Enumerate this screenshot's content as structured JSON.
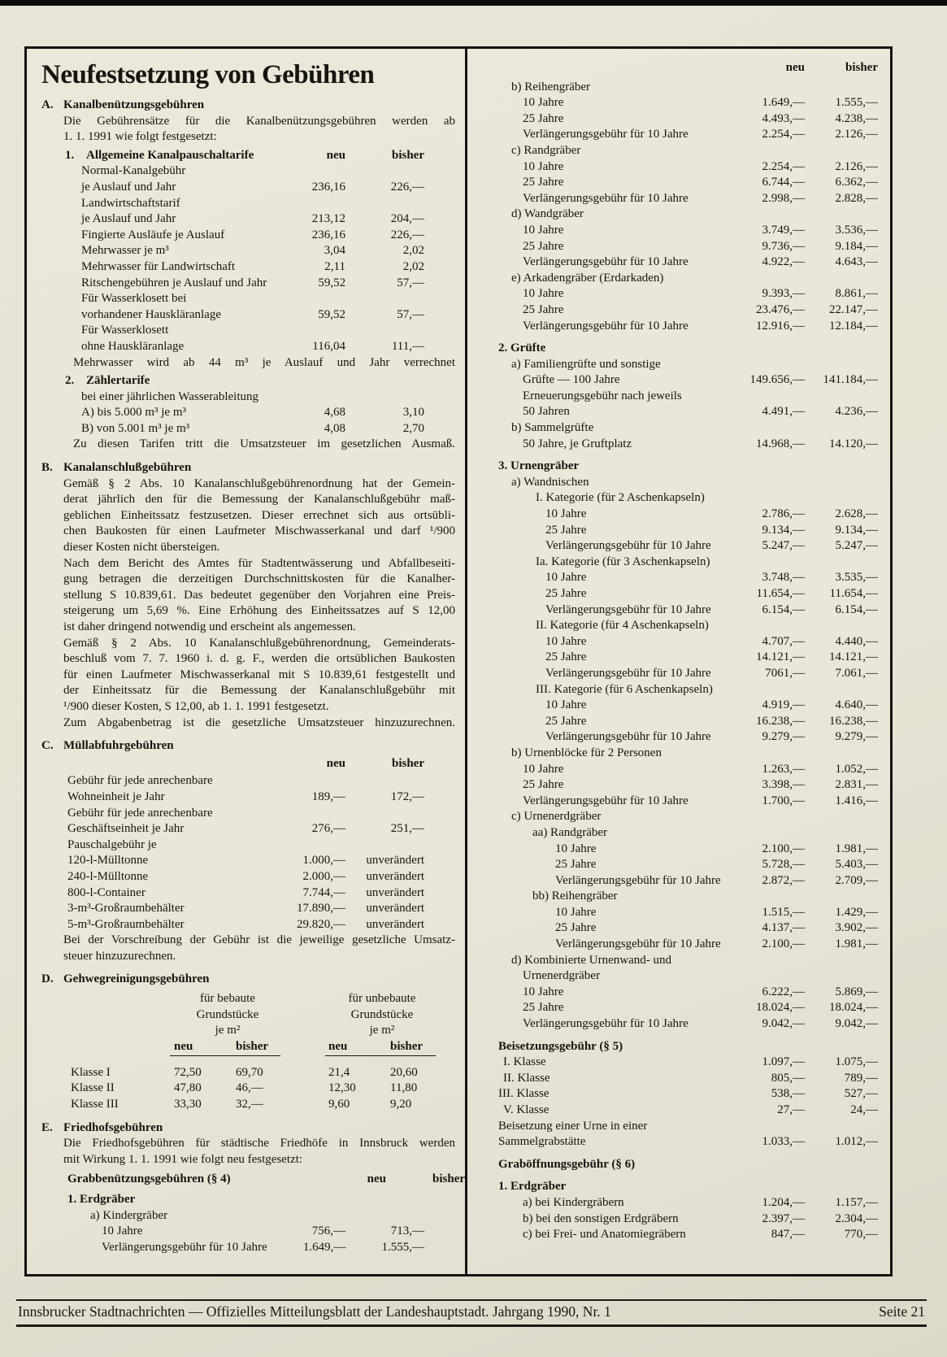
{
  "header": {
    "title": "Neufestsetzung von Gebühren"
  },
  "colors": {
    "paper": "#e9e5d6",
    "ink": "#17150f"
  },
  "footer": {
    "left": "Innsbrucker Stadtnachrichten — Offizielles Mitteilungsblatt der Landeshauptstadt. Jahrgang 1990, Nr. 1",
    "right": "Seite 21"
  },
  "columns": {
    "left": [
      {
        "t": "sec",
        "label": "A.",
        "text": "Kanalbenützungsgebühren"
      },
      {
        "t": "para",
        "lines": [
          "Die Gebührensätze für die Kanalbenützungsgebühren werden ab",
          "1. 1. 1991 wie folgt festgesetzt:"
        ]
      },
      {
        "t": "sub",
        "label": "1.",
        "text": "Allgemeine Kanalpauschaltarife",
        "neu": "neu",
        "bisher": "bisher"
      },
      {
        "t": "rows",
        "items": [
          {
            "ind": "a",
            "label": "Normal-Kanalgebühr"
          },
          {
            "ind": "a",
            "label": "je Auslauf und Jahr",
            "neu": "236,16",
            "bisher": "226,—"
          },
          {
            "ind": "a",
            "label": "Landwirtschaftstarif"
          },
          {
            "ind": "a",
            "label": "je Auslauf und Jahr",
            "neu": "213,12",
            "bisher": "204,—"
          },
          {
            "ind": "a",
            "label": "Fingierte Ausläufe je Auslauf",
            "neu": "236,16",
            "bisher": "226,—"
          },
          {
            "ind": "a",
            "label": "Mehrwasser je m³",
            "neu": "3,04",
            "bisher": "2,02"
          },
          {
            "ind": "a",
            "label": "Mehrwasser für Landwirtschaft",
            "neu": "2,11",
            "bisher": "2,02"
          },
          {
            "ind": "a",
            "label": "Ritschengebühren je Auslauf und Jahr",
            "neu": "59,52",
            "bisher": "57,—"
          },
          {
            "ind": "a",
            "label": "Für Wasserklosett bei"
          },
          {
            "ind": "a",
            "label": "vorhandener Hauskläranlage",
            "neu": "59,52",
            "bisher": "57,—"
          },
          {
            "ind": "a",
            "label": "Für Wasserklosett"
          },
          {
            "ind": "a",
            "label": "ohne Hauskläranlage",
            "neu": "116,04",
            "bisher": "111,—"
          }
        ]
      },
      {
        "t": "jline",
        "ind": "j1",
        "text": "Mehrwasser wird ab 44 m³ je Auslauf und Jahr verrechnet"
      },
      {
        "t": "sub",
        "label": "2.",
        "text": "Zählertarife"
      },
      {
        "t": "rows",
        "items": [
          {
            "ind": "a",
            "label": "bei einer jährlichen Wasserableitung"
          },
          {
            "ind": "a",
            "label": "A) bis 5.000 m³ je m³",
            "neu": "4,68",
            "bisher": "3,10"
          },
          {
            "ind": "a",
            "label": "B) von 5.001 m³ je m³",
            "neu": "4,08",
            "bisher": "2,70"
          }
        ]
      },
      {
        "t": "jline",
        "ind": "j1",
        "text": "Zu diesen Tarifen tritt die Umsatzsteuer im gesetzlichen Ausmaß."
      },
      {
        "t": "sec",
        "label": "B.",
        "text": "Kanalanschlußgebühren"
      },
      {
        "t": "para",
        "lines": [
          "Gemäß § 2 Abs. 10 Kanalanschlußgebührenordnung hat der Gemein-",
          "derat jährlich den für die Bemessung der Kanalanschlußgebühr maß-",
          "geblichen Einheitssatz festzusetzen. Dieser errechnet sich aus ortsübli-",
          "chen Baukosten für einen Laufmeter Mischwasserkanal und darf ¹/900",
          "dieser Kosten nicht übersteigen."
        ]
      },
      {
        "t": "para",
        "lines": [
          "Nach dem Bericht des Amtes für Stadtentwässerung und Abfallbeseiti-",
          "gung betragen die derzeitigen Durchschnittskosten für die Kanalher-",
          "stellung S 10.839,61. Das bedeutet gegenüber den Vorjahren eine Preis-",
          "steigerung um 5,69 %. Eine Erhöhung des Einheitssatzes auf S 12,00",
          "ist daher dringend notwendig und erscheint als angemessen."
        ]
      },
      {
        "t": "para",
        "lines": [
          "Gemäß § 2 Abs. 10 Kanalanschlußgebührenordnung, Gemeinderats-",
          "beschluß vom 7. 7. 1960 i. d. g. F., werden die ortsüblichen Baukosten",
          "für einen Laufmeter Mischwasserkanal mit S 10.839,61 festgestellt und",
          "der Einheitssatz für die Bemessung der Kanalanschlußgebühr mit",
          "¹/900 dieser Kosten, S 12,00, ab 1. 1. 1991 festgesetzt."
        ]
      },
      {
        "t": "jline",
        "ind": "j2",
        "text": "Zum Abgabenbetrag ist die gesetzliche Umsatzsteuer hinzuzurechnen."
      },
      {
        "t": "sec",
        "label": "C.",
        "text": "Müllabfuhrgebühren"
      },
      {
        "t": "colhead",
        "neu": "neu",
        "bisher": "bisher"
      },
      {
        "t": "rows",
        "items": [
          {
            "ind": "c",
            "label": "Gebühr für jede anrechenbare"
          },
          {
            "ind": "c",
            "label": "Wohneinheit je Jahr",
            "neu": "189,—",
            "bisher": "172,—"
          },
          {
            "ind": "c",
            "label": "Gebühr für jede anrechenbare"
          },
          {
            "ind": "c",
            "label": "Geschäftseinheit je Jahr",
            "neu": "276,—",
            "bisher": "251,—"
          },
          {
            "ind": "c",
            "label": "Pauschalgebühr je"
          },
          {
            "ind": "c",
            "label": "120-l-Mülltonne",
            "neu": "1.000,—",
            "bisher": "unverändert"
          },
          {
            "ind": "c",
            "label": "240-l-Mülltonne",
            "neu": "2.000,—",
            "bisher": "unverändert"
          },
          {
            "ind": "c",
            "label": "800-l-Container",
            "neu": "7.744,—",
            "bisher": "unverändert"
          },
          {
            "ind": "c",
            "label": "3-m³-Großraumbehälter",
            "neu": "17.890,—",
            "bisher": "unverändert"
          },
          {
            "ind": "c",
            "label": "5-m³-Großraumbehälter",
            "neu": "29.820,—",
            "bisher": "unverändert"
          }
        ]
      },
      {
        "t": "para",
        "lines": [
          "Bei der Vorschreibung der Gebühr ist die jeweilige gesetzliche Umsatz-",
          "steuer hinzuzurechnen."
        ]
      },
      {
        "t": "sec",
        "label": "D.",
        "text": "Gehwegreinigungsgebühren"
      },
      {
        "t": "table4",
        "groups": [
          {
            "lines": [
              "für bebaute",
              "Grundstücke",
              "je m²"
            ]
          },
          {
            "lines": [
              "für unbebaute",
              "Grundstücke",
              "je m²"
            ]
          }
        ],
        "cols": [
          "neu",
          "bisher",
          "neu",
          "bisher"
        ],
        "rows": [
          {
            "label": "Klasse I",
            "values": [
              "72,50",
              "69,70",
              "21,4",
              "20,60"
            ]
          },
          {
            "label": "Klasse II",
            "values": [
              "47,80",
              "46,—",
              "12,30",
              "11,80"
            ]
          },
          {
            "label": "Klasse III",
            "values": [
              "33,30",
              "32,—",
              "9,60",
              "9,20"
            ]
          }
        ]
      },
      {
        "t": "sec",
        "label": "E.",
        "text": "Friedhofsgebühren"
      },
      {
        "t": "para",
        "lines": [
          "Die Friedhofsgebühren für städtische Friedhöfe in Innsbruck werden",
          "mit Wirkung 1. 1. 1991 wie folgt neu festgesetzt:"
        ]
      },
      {
        "t": "sub2",
        "text": "Grabbenützungsgebühren (§ 4)",
        "neu": "neu",
        "bisher": "bisher"
      },
      {
        "t": "sub2",
        "text": "1. Erdgräber"
      },
      {
        "t": "rows",
        "items": [
          {
            "ind": "e1",
            "label": "a) Kindergräber"
          },
          {
            "ind": "e2",
            "label": "10 Jahre",
            "neu": "756,—",
            "bisher": "713,—"
          },
          {
            "ind": "e2",
            "label": "Verlängerungsgebühr für 10 Jahre",
            "neu": "1.649,—",
            "bisher": "1.555,—"
          }
        ]
      }
    ],
    "right": [
      {
        "t": "colhead",
        "neu": "neu",
        "bisher": "bisher"
      },
      {
        "t": "rows",
        "items": [
          {
            "ind": "g",
            "label": "b) Reihengräber"
          },
          {
            "ind": "r",
            "label": "10 Jahre",
            "neu": "1.649,—",
            "bisher": "1.555,—"
          },
          {
            "ind": "r",
            "label": "25 Jahre",
            "neu": "4.493,—",
            "bisher": "4.238,—"
          },
          {
            "ind": "r",
            "label": "Verlängerungsgebühr für 10 Jahre",
            "neu": "2.254,—",
            "bisher": "2.126,—"
          },
          {
            "ind": "g",
            "label": "c) Randgräber"
          },
          {
            "ind": "r",
            "label": "10 Jahre",
            "neu": "2.254,—",
            "bisher": "2.126,—"
          },
          {
            "ind": "r",
            "label": "25 Jahre",
            "neu": "6.744,—",
            "bisher": "6.362,—"
          },
          {
            "ind": "r",
            "label": "Verlängerungsgebühr für 10 Jahre",
            "neu": "2.998,—",
            "bisher": "2.828,—"
          },
          {
            "ind": "g",
            "label": "d) Wandgräber"
          },
          {
            "ind": "r",
            "label": "10 Jahre",
            "neu": "3.749,—",
            "bisher": "3.536,—"
          },
          {
            "ind": "r",
            "label": "25 Jahre",
            "neu": "9.736,—",
            "bisher": "9.184,—"
          },
          {
            "ind": "r",
            "label": "Verlängerungsgebühr für 10 Jahre",
            "neu": "4.922,—",
            "bisher": "4.643,—"
          },
          {
            "ind": "g",
            "label": "e) Arkadengräber (Erdarkaden)"
          },
          {
            "ind": "r",
            "label": "10 Jahre",
            "neu": "9.393,—",
            "bisher": "8.861,—"
          },
          {
            "ind": "r",
            "label": "25 Jahre",
            "neu": "23.476,—",
            "bisher": "22.147,—"
          },
          {
            "ind": "r",
            "label": "Verlängerungsgebühr für 10 Jahre",
            "neu": "12.916,—",
            "bisher": "12.184,—"
          }
        ]
      },
      {
        "t": "hd",
        "text": "2. Grüfte"
      },
      {
        "t": "rows",
        "items": [
          {
            "ind": "g",
            "label": "a) Familiengrüfte und sonstige"
          },
          {
            "ind": "r",
            "label": "Grüfte — 100 Jahre",
            "neu": "149.656,—",
            "bisher": "141.184,—"
          },
          {
            "ind": "r",
            "label": "Erneuerungsgebühr nach jeweils"
          },
          {
            "ind": "r",
            "label": "50 Jahren",
            "neu": "4.491,—",
            "bisher": "4.236,—"
          },
          {
            "ind": "g",
            "label": "b) Sammelgrüfte"
          },
          {
            "ind": "r",
            "label": "50 Jahre, je Gruftplatz",
            "neu": "14.968,—",
            "bisher": "14.120,—"
          }
        ]
      },
      {
        "t": "hd",
        "text": "3. Urnengräber"
      },
      {
        "t": "rows",
        "items": [
          {
            "ind": "g",
            "label": "a) Wandnischen"
          },
          {
            "ind": "cat",
            "label": "I. Kategorie (für 2 Aschenkapseln)"
          },
          {
            "ind": "cr",
            "label": "10 Jahre",
            "neu": "2.786,—",
            "bisher": "2.628,—"
          },
          {
            "ind": "cr",
            "label": "25 Jahre",
            "neu": "9.134,—",
            "bisher": "9.134,—"
          },
          {
            "ind": "cr",
            "label": "Verlängerungsgebühr für 10 Jahre",
            "neu": "5.247,—",
            "bisher": "5.247,—"
          },
          {
            "ind": "cat",
            "label": "Ia. Kategorie (für 3 Aschenkapseln)"
          },
          {
            "ind": "cr",
            "label": "10 Jahre",
            "neu": "3.748,—",
            "bisher": "3.535,—"
          },
          {
            "ind": "cr",
            "label": "25 Jahre",
            "neu": "11.654,—",
            "bisher": "11.654,—"
          },
          {
            "ind": "cr",
            "label": "Verlängerungsgebühr für 10 Jahre",
            "neu": "6.154,—",
            "bisher": "6.154,—"
          },
          {
            "ind": "cat",
            "label": "II. Kategorie (für 4 Aschenkapseln)"
          },
          {
            "ind": "cr",
            "label": "10 Jahre",
            "neu": "4.707,—",
            "bisher": "4.440,—"
          },
          {
            "ind": "cr",
            "label": "25 Jahre",
            "neu": "14.121,—",
            "bisher": "14.121,—"
          },
          {
            "ind": "cr",
            "label": "Verlängerungsgebühr für 10 Jahre",
            "neu": "7061,—",
            "bisher": "7.061,—"
          },
          {
            "ind": "cat",
            "label": "III. Kategorie (für 6 Aschenkapseln)"
          },
          {
            "ind": "cr",
            "label": "10 Jahre",
            "neu": "4.919,—",
            "bisher": "4.640,—"
          },
          {
            "ind": "cr",
            "label": "25 Jahre",
            "neu": "16.238,—",
            "bisher": "16.238,—"
          },
          {
            "ind": "cr",
            "label": "Verlängerungsgebühr für 10 Jahre",
            "neu": "9.279,—",
            "bisher": "9.279,—"
          },
          {
            "ind": "g",
            "label": "b) Urnenblöcke für 2 Personen"
          },
          {
            "ind": "r",
            "label": "10 Jahre",
            "neu": "1.263,—",
            "bisher": "1.052,—"
          },
          {
            "ind": "r",
            "label": "25 Jahre",
            "neu": "3.398,—",
            "bisher": "2.831,—"
          },
          {
            "ind": "r",
            "label": "Verlängerungsgebühr für 10 Jahre",
            "neu": "1.700,—",
            "bisher": "1.416,—"
          },
          {
            "ind": "g",
            "label": "c) Urnenerdgräber"
          },
          {
            "ind": "aa",
            "label": "aa) Randgräber"
          },
          {
            "ind": "ar",
            "label": "10 Jahre",
            "neu": "2.100,—",
            "bisher": "1.981,—"
          },
          {
            "ind": "ar",
            "label": "25 Jahre",
            "neu": "5.728,—",
            "bisher": "5.403,—"
          },
          {
            "ind": "ar",
            "label": "Verlängerungsgebühr für 10 Jahre",
            "neu": "2.872,—",
            "bisher": "2.709,—"
          },
          {
            "ind": "aa",
            "label": "bb) Reihengräber"
          },
          {
            "ind": "ar",
            "label": "10 Jahre",
            "neu": "1.515,—",
            "bisher": "1.429,—"
          },
          {
            "ind": "ar",
            "label": "25 Jahre",
            "neu": "4.137,—",
            "bisher": "3.902,—"
          },
          {
            "ind": "ar",
            "label": "Verlängerungsgebühr für 10 Jahre",
            "neu": "2.100,—",
            "bisher": "1.981,—"
          },
          {
            "ind": "g",
            "label": "d) Kombinierte Urnenwand- und"
          },
          {
            "ind": "r",
            "label": "Urnenerdgräber"
          },
          {
            "ind": "r",
            "label": "10 Jahre",
            "neu": "6.222,—",
            "bisher": "5.869,—"
          },
          {
            "ind": "r",
            "label": "25 Jahre",
            "neu": "18.024,—",
            "bisher": "18.024,—"
          },
          {
            "ind": "r",
            "label": "Verlängerungsgebühr für 10 Jahre",
            "neu": "9.042,—",
            "bisher": "9.042,—"
          }
        ]
      },
      {
        "t": "hd",
        "text": "Beisetzungsgebühr (§ 5)"
      },
      {
        "t": "rows",
        "items": [
          {
            "ind": "k",
            "label": "I. Klasse",
            "neu": "1.097,—",
            "bisher": "1.075,—"
          },
          {
            "ind": "k",
            "label": "II. Klasse",
            "neu": "805,—",
            "bisher": "789,—"
          },
          {
            "ind": "h",
            "label": "III. Klasse",
            "neu": "538,—",
            "bisher": "527,—"
          },
          {
            "ind": "k",
            "label": "V. Klasse",
            "neu": "27,—",
            "bisher": "24,—"
          },
          {
            "ind": "h",
            "label": "Beisetzung einer Urne in einer"
          },
          {
            "ind": "h",
            "label": "Sammelgrabstätte",
            "neu": "1.033,—",
            "bisher": "1.012,—"
          }
        ]
      },
      {
        "t": "hd",
        "text": "Graböffnungsgebühr (§ 6)"
      },
      {
        "t": "hd",
        "text": "1. Erdgräber"
      },
      {
        "t": "rows",
        "items": [
          {
            "ind": "r",
            "label": "a) bei Kindergräbern",
            "neu": "1.204,—",
            "bisher": "1.157,—"
          },
          {
            "ind": "r",
            "label": "b) bei den sonstigen Erdgräbern",
            "neu": "2.397,—",
            "bisher": "2.304,—"
          },
          {
            "ind": "r",
            "label": "c) bei Frei- und Anatomiegräbern",
            "neu": "847,—",
            "bisher": "770,—"
          }
        ]
      }
    ]
  }
}
